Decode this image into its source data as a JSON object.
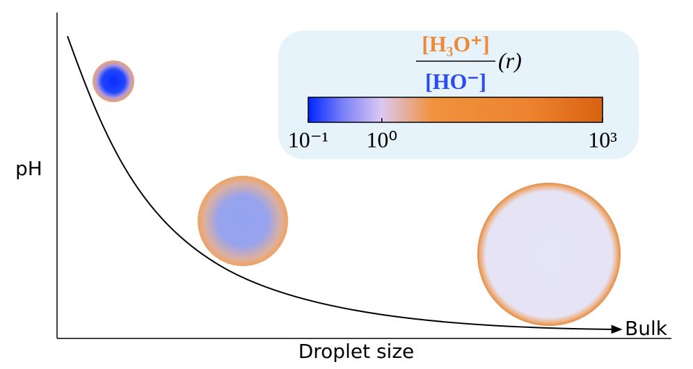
{
  "axes": {
    "y_label": "pH",
    "x_label": "Droplet size",
    "x_end_label": "Bulk"
  },
  "colorbar": {
    "numerator": "[H₃O⁺]",
    "denominator": "[HO⁻]",
    "suffix": "(r)",
    "scale": "log",
    "lim": [
      0.1,
      1000
    ],
    "ticks": [
      {
        "value": 0.1,
        "label": "10⁻¹"
      },
      {
        "value": 1,
        "label": "10⁰"
      },
      {
        "value": 1000,
        "label": "10³"
      }
    ]
  }
}
